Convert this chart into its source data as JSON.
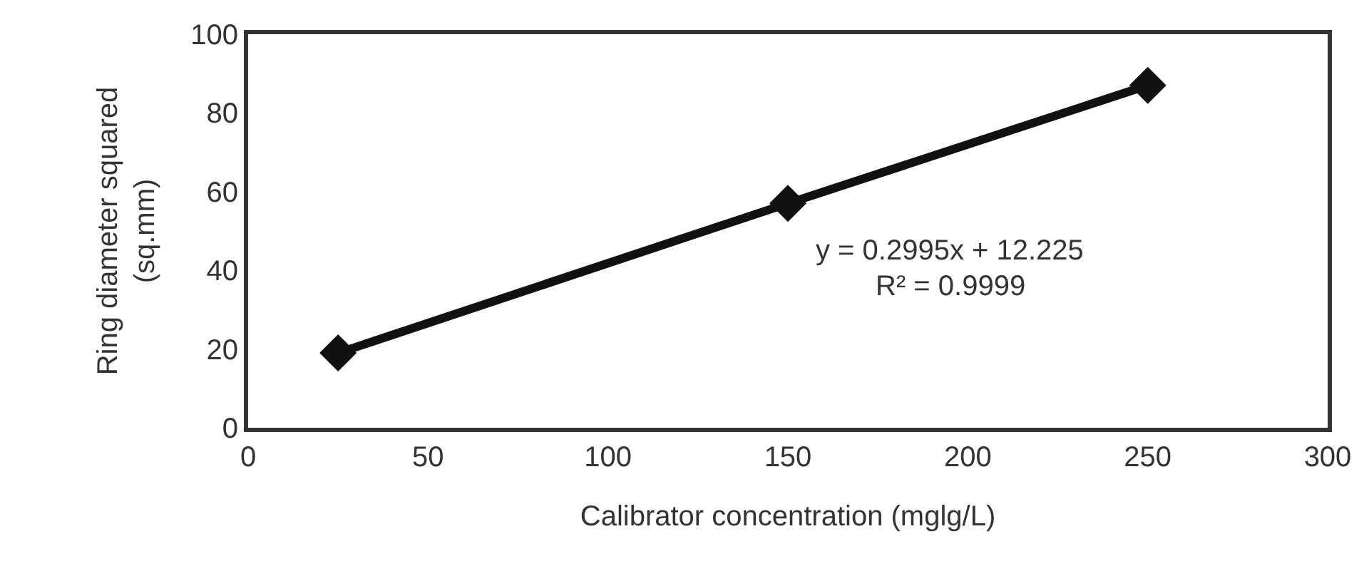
{
  "chart_data": {
    "type": "line",
    "xlabel": "Calibrator concentration (mglg/L)",
    "ylabel": "Ring diameter squared\n(sq.mm)",
    "x": [
      25,
      150,
      250
    ],
    "series": [
      {
        "color": "#111111",
        "values": [
          19,
          57,
          87
        ]
      }
    ],
    "xlim": [
      0,
      300
    ],
    "xticks": [
      0,
      50,
      100,
      150,
      200,
      250,
      300
    ],
    "ylim": [
      0,
      100
    ],
    "yticks": [
      0,
      20,
      40,
      60,
      80,
      100
    ],
    "annotations": [
      "y = 0.2995x + 12.225",
      "R² = 0.9999"
    ],
    "marker": "diamond",
    "line_style": "solid",
    "grid": false
  }
}
